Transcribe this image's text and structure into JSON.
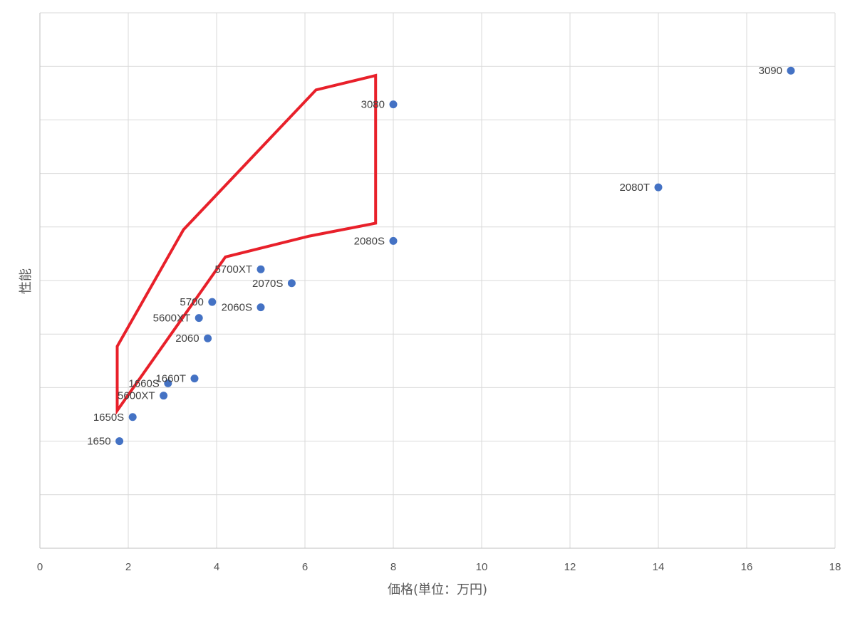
{
  "chart_data": {
    "type": "scatter",
    "xlabel": "価格(単位：万円)",
    "ylabel": "性能",
    "xlim": [
      0,
      18
    ],
    "xticks": [
      0,
      2,
      4,
      6,
      8,
      10,
      12,
      14,
      16,
      18
    ],
    "ylim": [
      0,
      10
    ],
    "ytick_labels_shown": false,
    "grid": true,
    "marker_color": "#4472C4",
    "series": [
      {
        "points": [
          {
            "label": "1650",
            "x": 1.8,
            "y": 2.0
          },
          {
            "label": "1650S",
            "x": 2.1,
            "y": 2.45
          },
          {
            "label": "5600XT",
            "x": 2.8,
            "y": 2.85
          },
          {
            "label": "1660S",
            "x": 2.9,
            "y": 3.08
          },
          {
            "label": "1660T",
            "x": 3.5,
            "y": 3.17
          },
          {
            "label": "2060",
            "x": 3.8,
            "y": 3.92
          },
          {
            "label": "5600XT",
            "x": 3.6,
            "y": 4.3
          },
          {
            "label": "5700",
            "x": 3.9,
            "y": 4.6
          },
          {
            "label": "2060S",
            "x": 5.0,
            "y": 4.5
          },
          {
            "label": "2070S",
            "x": 5.7,
            "y": 4.95
          },
          {
            "label": "5700XT",
            "x": 5.0,
            "y": 5.21
          },
          {
            "label": "2080S",
            "x": 8.0,
            "y": 5.74
          },
          {
            "label": "3080",
            "x": 8.0,
            "y": 8.29
          },
          {
            "label": "2080T",
            "x": 14.0,
            "y": 6.74
          },
          {
            "label": "3090",
            "x": 17.0,
            "y": 8.92
          }
        ]
      }
    ],
    "annotation": {
      "type": "polygon",
      "color": "#E8202A",
      "points": [
        [
          1.75,
          3.77
        ],
        [
          3.25,
          5.95
        ],
        [
          6.25,
          8.56
        ],
        [
          7.6,
          8.83
        ],
        [
          7.6,
          6.07
        ],
        [
          6.1,
          5.83
        ],
        [
          4.2,
          5.44
        ],
        [
          1.75,
          2.57
        ]
      ]
    }
  }
}
